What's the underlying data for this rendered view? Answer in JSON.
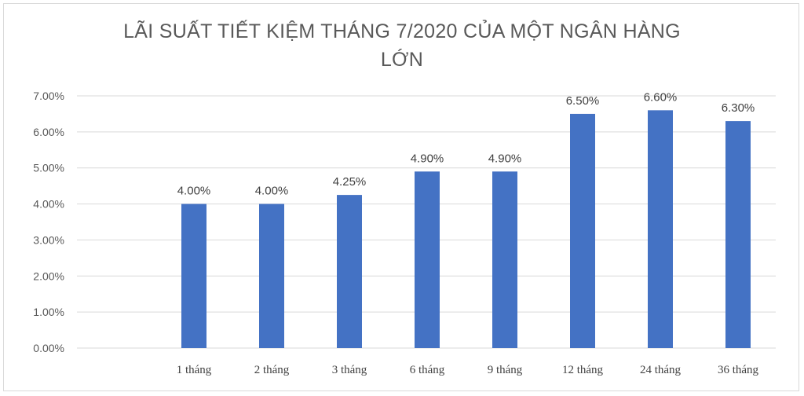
{
  "chart_data": {
    "type": "bar",
    "title_line1": "LÃI SUẤT TIẾT KIỆM THÁNG 7/2020 CỦA MỘT NGÂN HÀNG",
    "title_line2": "LỚN",
    "categories": [
      "1 tháng",
      "2 tháng",
      "3 tháng",
      "6 tháng",
      "9 tháng",
      "12 tháng",
      "24 tháng",
      "36 tháng"
    ],
    "values": [
      4.0,
      4.0,
      4.25,
      4.9,
      4.9,
      6.5,
      6.6,
      6.3
    ],
    "data_labels": [
      "4.00%",
      "4.00%",
      "4.25%",
      "4.90%",
      "4.90%",
      "6.50%",
      "6.60%",
      "6.30%"
    ],
    "y_ticks": [
      "0.00%",
      "1.00%",
      "2.00%",
      "3.00%",
      "4.00%",
      "5.00%",
      "6.00%",
      "7.00%"
    ],
    "ylim": [
      0,
      7
    ],
    "grid": true,
    "bar_color": "#4472c4"
  }
}
